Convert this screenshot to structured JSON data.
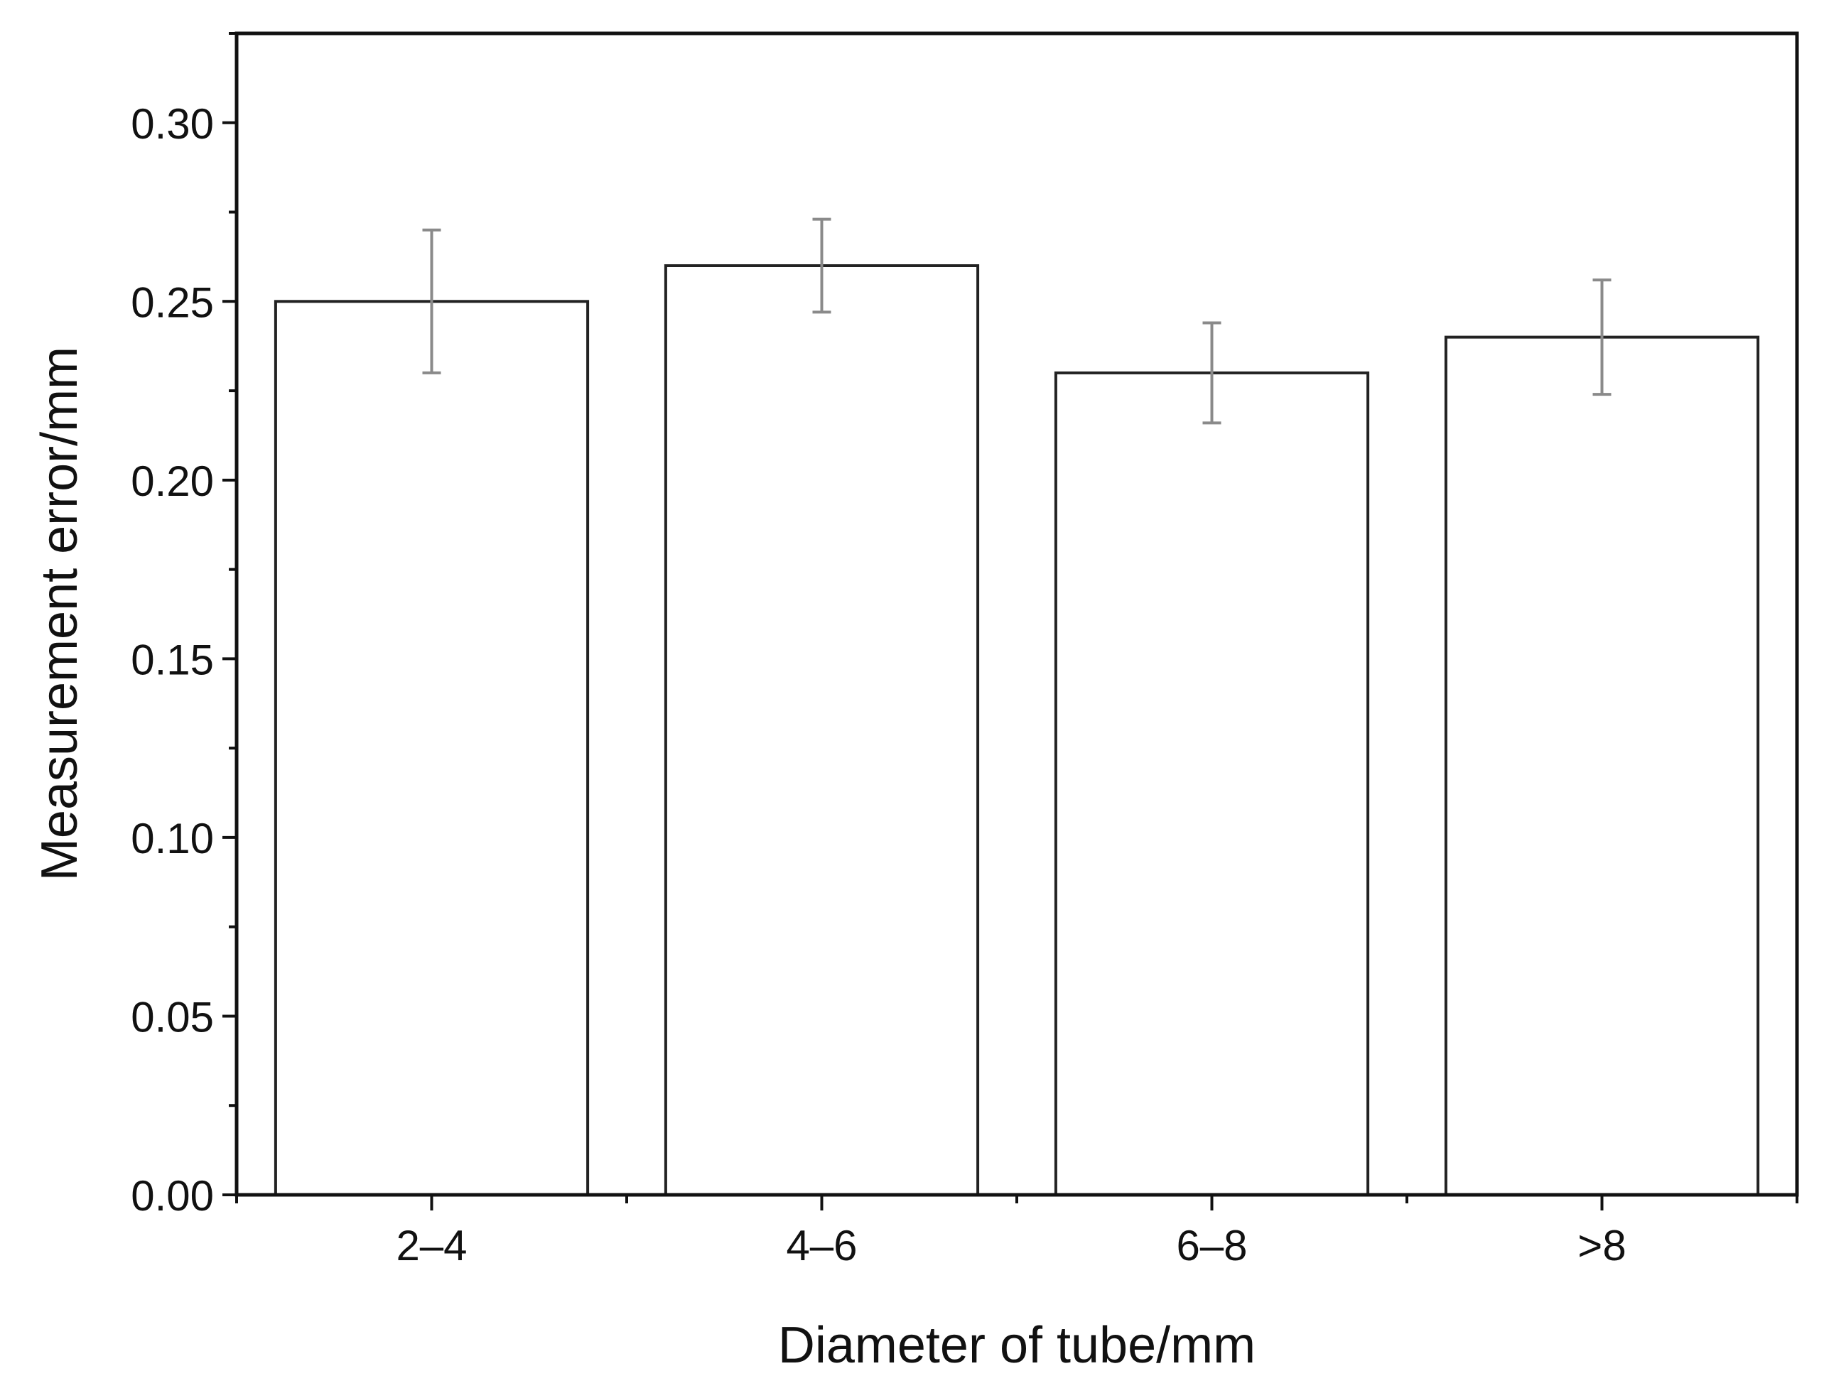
{
  "chart_data": {
    "type": "bar",
    "title": "",
    "xlabel": "Diameter of tube/mm",
    "ylabel": "Measurement error/mm",
    "categories": [
      "2–4",
      "4–6",
      "6–8",
      ">8"
    ],
    "values": [
      0.25,
      0.26,
      0.23,
      0.24
    ],
    "error": [
      0.02,
      0.013,
      0.014,
      0.016
    ],
    "ylim": [
      0,
      0.325
    ],
    "yticks": [
      "0.00",
      "0.05",
      "0.10",
      "0.15",
      "0.20",
      "0.25",
      "0.30"
    ],
    "grid": false,
    "legend": "none",
    "colors": {
      "bar_fill": "#ffffff",
      "bar_stroke": "#222222",
      "errorbar": "#8a8a8a",
      "axis": "#111111"
    }
  }
}
